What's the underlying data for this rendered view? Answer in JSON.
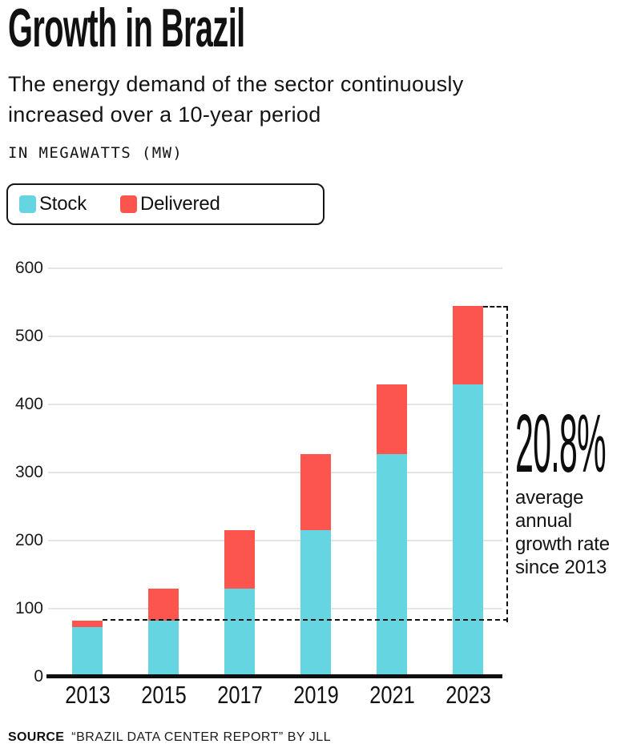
{
  "page": {
    "title": "Growth in Brazil",
    "subtitle_line1": "The energy demand of the sector continuously",
    "subtitle_line2": "increased over a 10-year period",
    "units_label": "IN MEGAWATTS (MW)",
    "source_label": "SOURCE",
    "source_text": "“BRAZIL DATA CENTER REPORT” BY JLL"
  },
  "annotation": {
    "rate": "20.8%",
    "label": "average annual growth rate since 2013"
  },
  "chart_data": {
    "type": "bar",
    "stacked": true,
    "title": "Growth in Brazil",
    "subtitle": "The energy demand of the sector continuously increased over a 10-year period",
    "ylabel": "IN MEGAWATTS (MW)",
    "categories": [
      "2013",
      "2015",
      "2017",
      "2019",
      "2021",
      "2023"
    ],
    "series": [
      {
        "name": "Stock",
        "color": "#64D5E1",
        "values": [
          73,
          82,
          130,
          215,
          327,
          430
        ]
      },
      {
        "name": "Delivered",
        "color": "#FC554E",
        "values": [
          9,
          48,
          85,
          112,
          103,
          115
        ]
      }
    ],
    "totals": [
      82,
      130,
      215,
      327,
      430,
      545
    ],
    "ylim": [
      0,
      600
    ],
    "yticks": [
      0,
      100,
      200,
      300,
      400,
      500,
      600
    ],
    "grid": true,
    "legend_position": "top-left",
    "annotation": {
      "value": "20.8%",
      "label": "average annual growth rate since 2013"
    },
    "source": "“BRAZIL DATA CENTER REPORT” BY JLL"
  }
}
